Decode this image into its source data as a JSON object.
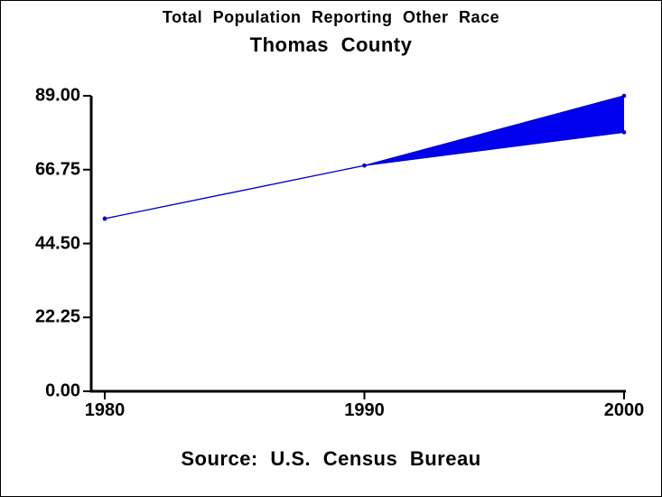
{
  "titles": {
    "line1": "Total Population Reporting Other Race",
    "line2": "Thomas County"
  },
  "footer": {
    "source": "Source: U.S. Census Bureau"
  },
  "colors": {
    "band": "#0000ee",
    "line": "#0000cc",
    "axis": "#000000"
  },
  "chart_data": {
    "type": "area",
    "title": "Total Population Reporting Other Race",
    "subtitle": "Thomas County",
    "source": "Source: U.S. Census Bureau",
    "x": [
      1980,
      1990,
      2000
    ],
    "series": [
      {
        "name": "upper",
        "values": [
          52,
          68,
          89
        ]
      },
      {
        "name": "lower",
        "values": [
          52,
          68,
          78
        ]
      }
    ],
    "fill_between": true,
    "xticks": [
      "1980",
      "1990",
      "2000"
    ],
    "yticks": [
      "0.00",
      "22.25",
      "44.50",
      "66.75",
      "89.00"
    ],
    "xlim": [
      1980,
      2000
    ],
    "ylim": [
      0,
      89
    ],
    "grid": false,
    "legend": "none"
  }
}
